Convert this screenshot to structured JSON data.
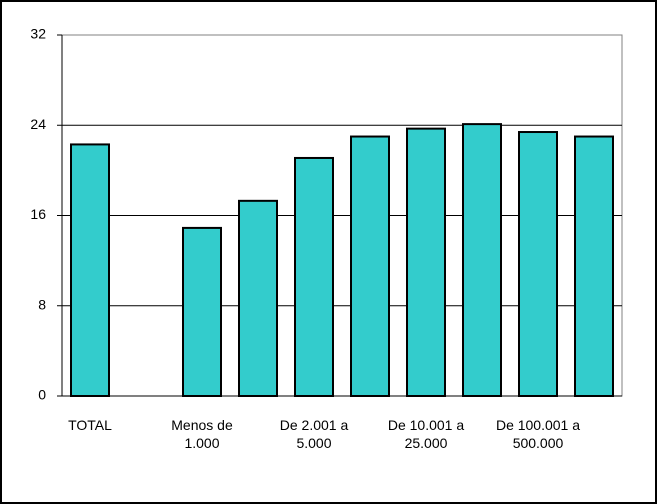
{
  "chart_data": {
    "type": "bar",
    "categories": [
      "TOTAL",
      null,
      "Menos de\n1.000",
      null,
      "De 2.001 a\n5.000",
      null,
      "De 10.001 a\n25.000",
      null,
      "De 100.001 a\n500.000",
      null
    ],
    "values": [
      22.3,
      null,
      14.9,
      17.3,
      21.1,
      23.0,
      23.7,
      24.1,
      23.4,
      23.0
    ],
    "color": "#33cccc",
    "ylim": [
      0,
      32
    ],
    "yticks": [
      0,
      8,
      16,
      24,
      32
    ],
    "grid": true
  }
}
